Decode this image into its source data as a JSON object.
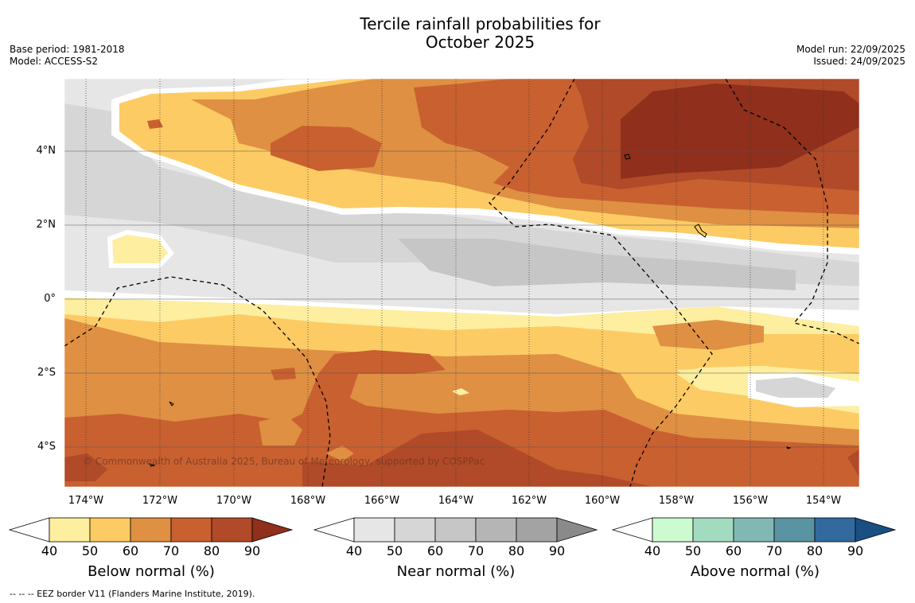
{
  "title_line1": "Tercile rainfall probabilities for",
  "title_line2": "October 2025",
  "base_period": "Base period: 1981-2018",
  "model": "Model: ACCESS-S2",
  "model_run": "Model run: 22/09/2025",
  "issued": "Issued: 24/09/2025",
  "copyright": "© Commonwealth of Australia 2025, Bureau of Meteorology, supported by COSPPac",
  "footer": "--  --  -- EEZ border V11 (Flanders Marine Institute, 2019).",
  "lat_labels": [
    "4°N",
    "2°N",
    "0°",
    "2°S",
    "4°S"
  ],
  "lon_labels": [
    "174°W",
    "172°W",
    "170°W",
    "168°W",
    "166°W",
    "164°W",
    "162°W",
    "160°W",
    "158°W",
    "156°W",
    "154°W"
  ],
  "legend": {
    "below": {
      "title": "Below normal (%)",
      "ticks": [
        "40",
        "50",
        "60",
        "70",
        "80",
        "90"
      ],
      "colors": [
        "#fdeea0",
        "#fdcb64",
        "#df9042",
        "#c96030",
        "#b04a28",
        "#8f2f1c"
      ]
    },
    "near": {
      "title": "Near normal (%)",
      "ticks": [
        "40",
        "50",
        "60",
        "70",
        "80",
        "90"
      ],
      "colors": [
        "#e6e6e6",
        "#d6d6d6",
        "#c6c6c6",
        "#b5b5b5",
        "#a3a3a3",
        "#8a8a8a"
      ]
    },
    "above": {
      "title": "Above normal (%)",
      "ticks": [
        "40",
        "50",
        "60",
        "70",
        "80",
        "90"
      ],
      "colors": [
        "#ccfbd0",
        "#a3dbc0",
        "#82b8b3",
        "#5a93a1",
        "#326a9e",
        "#1a4f84"
      ]
    }
  }
}
